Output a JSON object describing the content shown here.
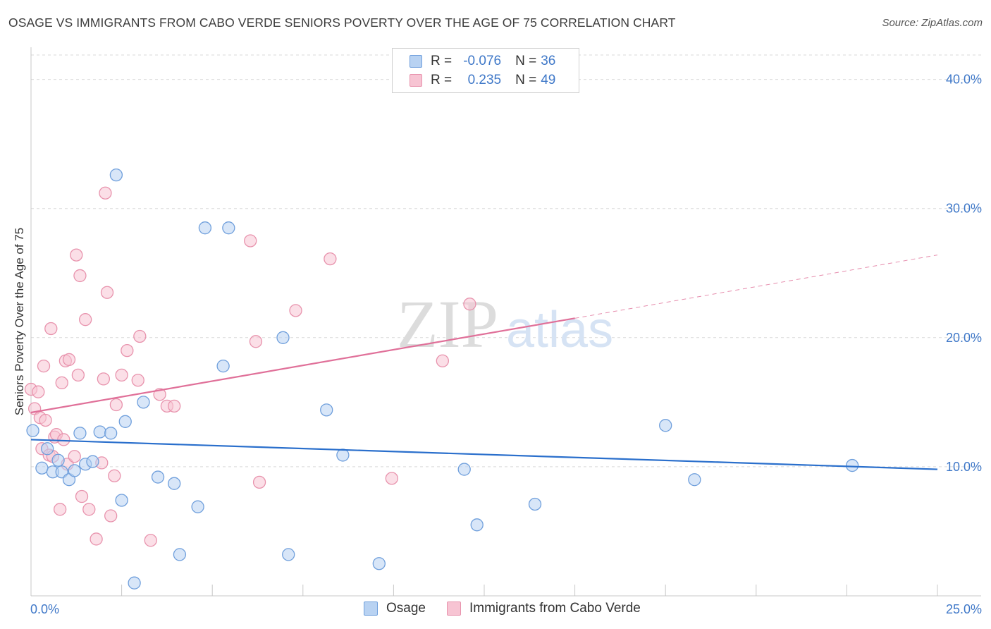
{
  "header": {
    "title": "OSAGE VS IMMIGRANTS FROM CABO VERDE SENIORS POVERTY OVER THE AGE OF 75 CORRELATION CHART",
    "source": "Source: ZipAtlas.com"
  },
  "watermark": {
    "zip": "ZIP",
    "atlas": "atlas"
  },
  "legend": {
    "series1": {
      "r_label": "R = ",
      "r_value": "-0.076",
      "n_label": "N = ",
      "n_value": "36"
    },
    "series2": {
      "r_label": "R = ",
      "r_value": "0.235",
      "n_label": "N = ",
      "n_value": "49"
    }
  },
  "colors": {
    "blue_fill": "#b8d2f2",
    "blue_stroke": "#6f9fdc",
    "blue_line": "#2a6fcc",
    "pink_fill": "#f7c4d3",
    "pink_stroke": "#e893ad",
    "pink_line": "#e07099",
    "axis_text": "#3f78c8",
    "grid": "#d9d9d9"
  },
  "chart_data": {
    "type": "scatter",
    "title": "OSAGE VS IMMIGRANTS FROM CABO VERDE SENIORS POVERTY OVER THE AGE OF 75 CORRELATION CHART",
    "xlabel": "",
    "ylabel": "Seniors Poverty Over the Age of 75",
    "xlim": [
      0,
      25
    ],
    "ylim": [
      0,
      42
    ],
    "x_tick_labels": [
      "0.0%",
      "25.0%"
    ],
    "y_ticks": [
      10,
      20,
      30,
      40
    ],
    "y_tick_labels": [
      "10.0%",
      "20.0%",
      "30.0%",
      "40.0%"
    ],
    "grid": true,
    "legend_position": "bottom",
    "series": [
      {
        "name": "Osage",
        "r": -0.076,
        "n": 36,
        "trend": {
          "x": [
            0,
            25
          ],
          "y": [
            12.1,
            9.8
          ]
        },
        "points": [
          [
            0.05,
            12.8
          ],
          [
            0.3,
            9.9
          ],
          [
            0.45,
            11.4
          ],
          [
            0.6,
            9.6
          ],
          [
            0.75,
            10.5
          ],
          [
            0.85,
            9.6
          ],
          [
            1.05,
            9.0
          ],
          [
            1.2,
            9.7
          ],
          [
            1.35,
            12.6
          ],
          [
            1.5,
            10.2
          ],
          [
            1.7,
            10.4
          ],
          [
            1.9,
            12.7
          ],
          [
            2.2,
            12.6
          ],
          [
            2.35,
            32.6
          ],
          [
            2.5,
            7.4
          ],
          [
            2.6,
            13.5
          ],
          [
            2.85,
            1.0
          ],
          [
            3.1,
            15.0
          ],
          [
            3.5,
            9.2
          ],
          [
            3.95,
            8.7
          ],
          [
            4.1,
            3.2
          ],
          [
            4.6,
            6.9
          ],
          [
            4.8,
            28.5
          ],
          [
            5.45,
            28.5
          ],
          [
            5.3,
            17.8
          ],
          [
            6.95,
            20.0
          ],
          [
            7.1,
            3.2
          ],
          [
            8.15,
            14.4
          ],
          [
            8.6,
            10.9
          ],
          [
            9.6,
            2.5
          ],
          [
            11.95,
            9.8
          ],
          [
            12.3,
            5.5
          ],
          [
            13.9,
            7.1
          ],
          [
            17.5,
            13.2
          ],
          [
            18.3,
            9.0
          ],
          [
            22.65,
            10.1
          ]
        ]
      },
      {
        "name": "Immigrants from Cabo Verde",
        "r": 0.235,
        "n": 49,
        "trend": {
          "x": [
            0,
            15
          ],
          "y": [
            14.2,
            21.5
          ]
        },
        "trend_dashed": {
          "x": [
            15,
            25
          ],
          "y": [
            21.5,
            26.4
          ]
        },
        "points": [
          [
            0.0,
            16.0
          ],
          [
            0.1,
            14.5
          ],
          [
            0.2,
            15.8
          ],
          [
            0.25,
            13.8
          ],
          [
            0.3,
            11.4
          ],
          [
            0.35,
            17.8
          ],
          [
            0.4,
            13.6
          ],
          [
            0.5,
            10.9
          ],
          [
            0.55,
            20.7
          ],
          [
            0.6,
            10.8
          ],
          [
            0.65,
            12.3
          ],
          [
            0.7,
            12.5
          ],
          [
            0.8,
            6.7
          ],
          [
            0.85,
            16.5
          ],
          [
            0.9,
            12.1
          ],
          [
            0.95,
            18.2
          ],
          [
            1.0,
            10.2
          ],
          [
            1.05,
            18.3
          ],
          [
            1.2,
            10.8
          ],
          [
            1.25,
            26.4
          ],
          [
            1.3,
            17.1
          ],
          [
            1.35,
            24.8
          ],
          [
            1.4,
            7.7
          ],
          [
            1.5,
            21.4
          ],
          [
            1.6,
            6.7
          ],
          [
            1.8,
            4.4
          ],
          [
            1.95,
            10.3
          ],
          [
            2.0,
            16.8
          ],
          [
            2.05,
            31.2
          ],
          [
            2.1,
            23.5
          ],
          [
            2.2,
            6.2
          ],
          [
            2.3,
            9.3
          ],
          [
            2.35,
            14.8
          ],
          [
            2.5,
            17.1
          ],
          [
            2.65,
            19.0
          ],
          [
            2.95,
            16.7
          ],
          [
            3.0,
            20.1
          ],
          [
            3.3,
            4.3
          ],
          [
            3.55,
            15.6
          ],
          [
            3.75,
            14.7
          ],
          [
            3.95,
            14.7
          ],
          [
            6.05,
            27.5
          ],
          [
            6.2,
            19.7
          ],
          [
            6.3,
            8.8
          ],
          [
            7.3,
            22.1
          ],
          [
            8.25,
            26.1
          ],
          [
            9.95,
            9.1
          ],
          [
            11.35,
            18.2
          ],
          [
            12.1,
            22.6
          ]
        ]
      }
    ]
  },
  "bottom_legend": {
    "item1": "Osage",
    "item2": "Immigrants from Cabo Verde"
  }
}
